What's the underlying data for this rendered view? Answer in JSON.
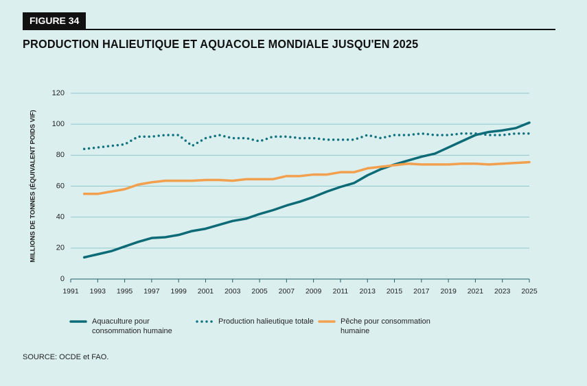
{
  "chart_data": {
    "type": "line",
    "figure_label": "FIGURE 34",
    "title": "PRODUCTION HALIEUTIQUE ET AQUACOLE MONDIALE JUSQU'EN 2025",
    "ylabel": "MILLIONS DE TONNES (ÉQUIVALENT POIDS VIF)",
    "source": "SOURCE: OCDE et FAO.",
    "x": [
      1992,
      1993,
      1994,
      1995,
      1996,
      1997,
      1998,
      1999,
      2000,
      2001,
      2002,
      2003,
      2004,
      2005,
      2006,
      2007,
      2008,
      2009,
      2010,
      2011,
      2012,
      2013,
      2014,
      2015,
      2016,
      2017,
      2018,
      2019,
      2020,
      2021,
      2022,
      2023,
      2024,
      2025
    ],
    "xlim": [
      1991,
      2025
    ],
    "xticks": [
      1991,
      1993,
      1995,
      1997,
      1999,
      2001,
      2003,
      2005,
      2007,
      2009,
      2011,
      2013,
      2015,
      2017,
      2019,
      2021,
      2023,
      2025
    ],
    "ylim": [
      0,
      120
    ],
    "yticks": [
      0,
      20,
      40,
      60,
      80,
      100,
      120
    ],
    "grid": true,
    "series": [
      {
        "name": "Aquaculture pour consommation humaine",
        "color": "#0d6b77",
        "style": "solid",
        "values": [
          14,
          16,
          18,
          21,
          24,
          26.5,
          27,
          28.5,
          31,
          32.5,
          35,
          37.5,
          39,
          42,
          44.5,
          47.5,
          50,
          53,
          56.5,
          59.5,
          62,
          67,
          71,
          74,
          76.5,
          79,
          81,
          85,
          89,
          93,
          95,
          96,
          97.5,
          101
        ]
      },
      {
        "name": "Production halieutique totale",
        "color": "#117380",
        "style": "dotted",
        "values": [
          84,
          85,
          86,
          87,
          92,
          92,
          93,
          93,
          86,
          91,
          93,
          91,
          91,
          89,
          92,
          92,
          91,
          91,
          90,
          90,
          90,
          93,
          91,
          93,
          93,
          94,
          93,
          93,
          94,
          94,
          93,
          93,
          94,
          94
        ]
      },
      {
        "name": "Pêche pour consommation humaine",
        "color": "#f2a04e",
        "style": "solid",
        "values": [
          55,
          55,
          56.5,
          58,
          61,
          62.5,
          63.5,
          63.5,
          63.5,
          64,
          64,
          63.5,
          64.5,
          64.5,
          64.5,
          66.5,
          66.5,
          67.5,
          67.5,
          69,
          69,
          71.5,
          72.5,
          73.5,
          74.5,
          74,
          74,
          74,
          74.5,
          74.5,
          74,
          74.5,
          75,
          75.5
        ]
      }
    ]
  }
}
